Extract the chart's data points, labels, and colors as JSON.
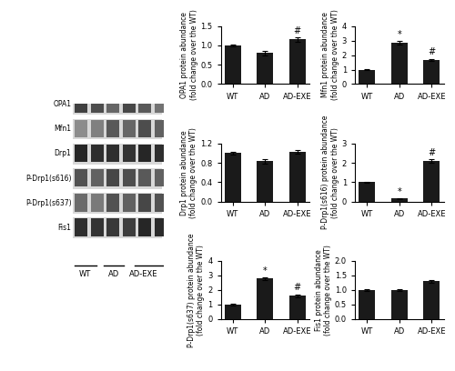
{
  "groups": [
    "WT",
    "AD",
    "AD-EXE"
  ],
  "bar_color": "#1a1a1a",
  "bar_width": 0.5,
  "capsize": 2,
  "error_color": "black",
  "charts": [
    {
      "id": "OPA1",
      "ylabel": "OPA1 protein abundance\n(fold change over the WT)",
      "ylim": [
        0,
        1.5
      ],
      "yticks": [
        0,
        0.5,
        1.0,
        1.5
      ],
      "values": [
        1.0,
        0.8,
        1.15
      ],
      "errors": [
        0.03,
        0.05,
        0.05
      ],
      "annotations": [
        "",
        "",
        "#"
      ],
      "row": 0,
      "col": 0
    },
    {
      "id": "Mfn1",
      "ylabel": "Mfn1 protein abundance\n(fold change over the WT)",
      "ylim": [
        0,
        4
      ],
      "yticks": [
        0,
        1,
        2,
        3,
        4
      ],
      "values": [
        1.0,
        2.85,
        1.65
      ],
      "errors": [
        0.05,
        0.1,
        0.08
      ],
      "annotations": [
        "",
        "*",
        "#"
      ],
      "row": 0,
      "col": 1
    },
    {
      "id": "Drp1",
      "ylabel": "Drp1 protein abundance\n(fold change over the WT)",
      "ylim": [
        0,
        1.2
      ],
      "yticks": [
        0,
        0.4,
        0.8,
        1.2
      ],
      "values": [
        1.0,
        0.83,
        1.02
      ],
      "errors": [
        0.03,
        0.04,
        0.04
      ],
      "annotations": [
        "",
        "",
        ""
      ],
      "row": 1,
      "col": 0
    },
    {
      "id": "P-Drp1(s616)",
      "ylabel": "P-Drp1(s616) protein abundance\n(fold change over the WT)",
      "ylim": [
        0,
        3
      ],
      "yticks": [
        0,
        1,
        2,
        3
      ],
      "values": [
        1.0,
        0.15,
        2.1
      ],
      "errors": [
        0.04,
        0.02,
        0.08
      ],
      "annotations": [
        "",
        "*",
        "#"
      ],
      "row": 1,
      "col": 1
    },
    {
      "id": "P-Drp1(s637)",
      "ylabel": "P-Drp1(s637) protein abundance\n(fold change over the WT)",
      "ylim": [
        0,
        4
      ],
      "yticks": [
        0,
        1,
        2,
        3,
        4
      ],
      "values": [
        1.0,
        2.78,
        1.6
      ],
      "errors": [
        0.04,
        0.08,
        0.08
      ],
      "annotations": [
        "",
        "*",
        "#"
      ],
      "row": 2,
      "col": 0
    },
    {
      "id": "Fis1",
      "ylabel": "Fis1 protein abundance\n(fold change over the WT)",
      "ylim": [
        0,
        2
      ],
      "yticks": [
        0,
        0.5,
        1.0,
        1.5,
        2.0
      ],
      "values": [
        1.0,
        1.0,
        1.3
      ],
      "errors": [
        0.04,
        0.04,
        0.04
      ],
      "annotations": [
        "",
        "",
        ""
      ],
      "row": 2,
      "col": 1
    }
  ],
  "wb_bands": [
    "OPA1",
    "Mfn1",
    "Drp1",
    "P-Drp1(s616)",
    "P-Drp1(s637)",
    "Fis1"
  ],
  "wb_group_labels": [
    "WT",
    "AD",
    "AD-EXE"
  ],
  "figure_bg": "#ffffff",
  "axes_label_fontsize": 5.5,
  "tick_fontsize": 6,
  "annotation_fontsize": 7
}
